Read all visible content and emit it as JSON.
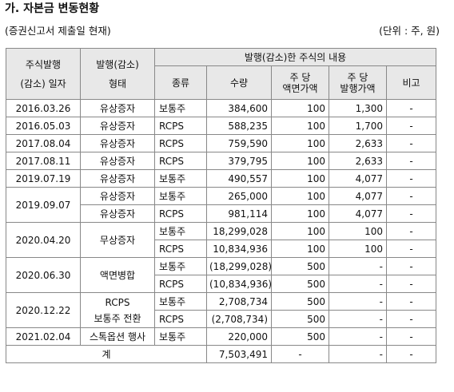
{
  "title": "가. 자본금 변동현황",
  "subtitle": "(증권신고서 제출일 현재)",
  "unit": "(단위 : 주, 원)",
  "headers": {
    "date_line1": "주식발행",
    "date_line2": "(감소) 일자",
    "type_line1": "발행(감소)",
    "type_line2": "형태",
    "group": "발행(감소)한 주식의 내용",
    "kind": "종류",
    "qty": "수량",
    "par_line1": "주 당",
    "par_line2": "액면가액",
    "price_line1": "주 당",
    "price_line2": "발행가액",
    "note": "비고"
  },
  "rows": [
    {
      "date": "2016.03.26",
      "type": "유상증자",
      "kind": "보통주",
      "qty": "384,600",
      "par": "100",
      "price": "1,300",
      "note": "-"
    },
    {
      "date": "2016.05.03",
      "type": "유상증자",
      "kind": "RCPS",
      "qty": "588,235",
      "par": "100",
      "price": "1,700",
      "note": "-"
    },
    {
      "date": "2017.08.04",
      "type": "유상증자",
      "kind": "RCPS",
      "qty": "759,590",
      "par": "100",
      "price": "2,633",
      "note": "-"
    },
    {
      "date": "2017.08.11",
      "type": "유상증자",
      "kind": "RCPS",
      "qty": "379,795",
      "par": "100",
      "price": "2,633",
      "note": "-"
    },
    {
      "date": "2019.07.19",
      "type": "유상증자",
      "kind": "보통주",
      "qty": "490,557",
      "par": "100",
      "price": "4,077",
      "note": "-"
    },
    {
      "date": "2019.09.07",
      "type": "유상증자",
      "kind": "보통주",
      "qty": "265,000",
      "par": "100",
      "price": "4,077",
      "note": "-"
    },
    {
      "date": "",
      "type": "유상증자",
      "kind": "RCPS",
      "qty": "981,114",
      "par": "100",
      "price": "4,077",
      "note": "-"
    },
    {
      "date": "2020.04.20",
      "type": "무상증자",
      "kind": "보통주",
      "qty": "18,299,028",
      "par": "100",
      "price": "100",
      "note": "-"
    },
    {
      "date": "",
      "type": "",
      "kind": "RCPS",
      "qty": "10,834,936",
      "par": "100",
      "price": "100",
      "note": "-"
    },
    {
      "date": "2020.06.30",
      "type": "액면병합",
      "kind": "보통주",
      "qty": "(18,299,028)",
      "par": "500",
      "price": "-",
      "note": "-"
    },
    {
      "date": "",
      "type": "",
      "kind": "RCPS",
      "qty": "(10,834,936)",
      "par": "500",
      "price": "-",
      "note": "-"
    },
    {
      "date": "2020.12.22",
      "type_line1": "RCPS",
      "type_line2": "보통주 전환",
      "kind": "보통주",
      "qty": "2,708,734",
      "par": "500",
      "price": "-",
      "note": "-"
    },
    {
      "date": "",
      "type": "",
      "kind": "RCPS",
      "qty": "(2,708,734)",
      "par": "500",
      "price": "-",
      "note": "-"
    },
    {
      "date": "2021.02.04",
      "type": "스톡옵션 행사",
      "kind": "보통주",
      "qty": "220,000",
      "par": "500",
      "price": "-",
      "note": "-"
    }
  ],
  "total": {
    "label": "계",
    "qty": "7,503,491",
    "par": "-",
    "price": "-",
    "note": "-"
  }
}
